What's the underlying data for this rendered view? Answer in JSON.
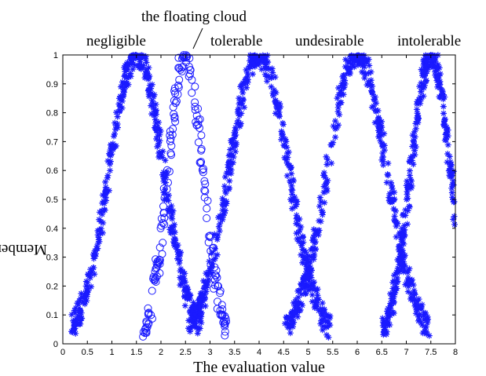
{
  "chart_data": {
    "type": "scatter",
    "title": "",
    "xlabel": "The evaluation value",
    "ylabel": "Membership",
    "xlim": [
      0,
      8
    ],
    "ylim": [
      0,
      1
    ],
    "xticks": [
      "0",
      "0.5",
      "1",
      "1.5",
      "2",
      "2.5",
      "3",
      "3.5",
      "4",
      "4.5",
      "5",
      "5.5",
      "6",
      "6.5",
      "7",
      "7.5",
      "8"
    ],
    "yticks": [
      "0",
      "0.1",
      "0.2",
      "0.3",
      "0.4",
      "0.5",
      "0.6",
      "0.7",
      "0.8",
      "0.9",
      "1"
    ],
    "grid": false,
    "color": "#1a1aff",
    "categories": [
      {
        "label": "negligible",
        "peak_x": 1.5
      },
      {
        "label": "tolerable",
        "peak_x": 4.0
      },
      {
        "label": "undesirable",
        "peak_x": 6.0
      },
      {
        "label": "intolerable",
        "peak_x": 7.5
      }
    ],
    "annotation": {
      "label": "the floating cloud",
      "peak_x": 2.5
    },
    "series": [
      {
        "marker": "star",
        "centers": [
          1.5,
          4.0,
          6.0,
          7.5
        ],
        "spread": [
          0.55,
          0.6,
          0.6,
          0.4
        ]
      },
      {
        "marker": "circle",
        "centers": [
          2.5
        ],
        "spread": [
          0.35
        ]
      }
    ]
  }
}
